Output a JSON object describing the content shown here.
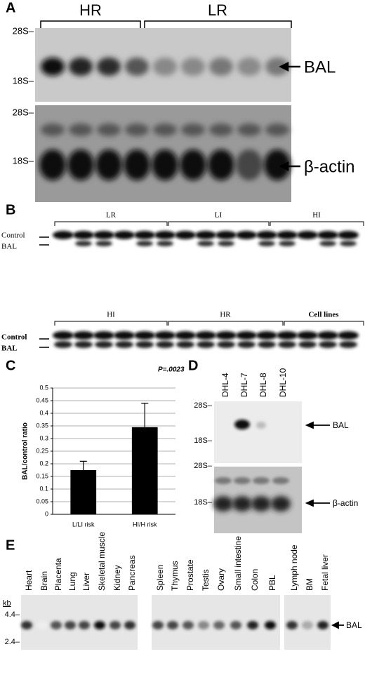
{
  "figure": {
    "A": {
      "label": "A",
      "groups": [
        "HR",
        "LR"
      ],
      "markers": [
        "28S–",
        "18S–",
        "28S–",
        "18S–"
      ],
      "bands": [
        "BAL",
        "β-actin"
      ]
    },
    "B": {
      "label": "B",
      "groups_top": [
        "LR",
        "LI",
        "HI"
      ],
      "groups_bottom": [
        "HI",
        "HR",
        "Cell lines"
      ],
      "rows": [
        "Control",
        "BAL"
      ]
    },
    "C": {
      "label": "C"
    },
    "D": {
      "label": "D",
      "lanes": [
        "DHL-4",
        "DHL-7",
        "DHL-8",
        "DHL-10"
      ],
      "markers": [
        "28S–",
        "18S–",
        "28S–",
        "18S–"
      ],
      "bands": [
        "BAL",
        "β-actin"
      ]
    },
    "E": {
      "label": "E",
      "lanes": [
        "Heart",
        "Brain",
        "Placenta",
        "Lung",
        "Liver",
        "Skeletal muscle",
        "Kidney",
        "Pancreas",
        "Spleen",
        "Thymus",
        "Prostate",
        "Testis",
        "Ovary",
        "Small intestine",
        "Colon",
        "PBL",
        "Lymph node",
        "BM",
        "Fetal liver"
      ],
      "unit": "kb",
      "markers": [
        "4.4–",
        "2.4–"
      ],
      "band": "BAL"
    }
  },
  "chart_data": {
    "type": "bar",
    "annotation": "P=.0023",
    "ylabel": "BAL/control ratio",
    "categories": [
      "L/LI risk",
      "HI/H risk"
    ],
    "values": [
      0.175,
      0.345
    ],
    "errors": [
      0.035,
      0.095
    ],
    "color": "#000000",
    "ylim": [
      0,
      0.5
    ],
    "yticks": [
      0,
      0.05,
      0.1,
      0.15,
      0.2,
      0.25,
      0.3,
      0.35,
      0.4,
      0.45,
      0.5
    ],
    "grid": true
  }
}
